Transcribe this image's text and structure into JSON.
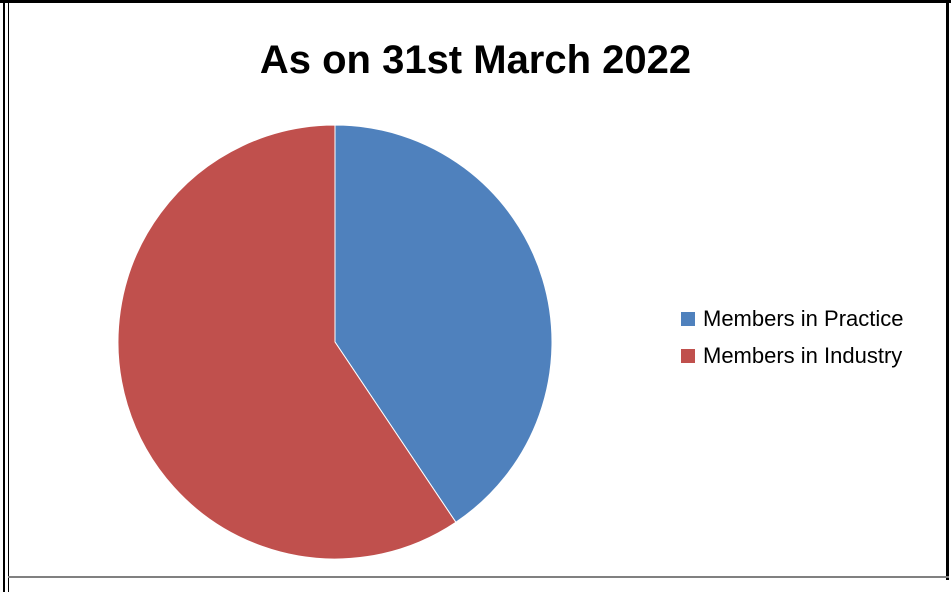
{
  "chart_data": {
    "type": "pie",
    "title": "As on 31st March 2022",
    "legend_position": "right",
    "slices": [
      {
        "label": "Members in Practice",
        "value": 40.6,
        "color": "#4F81BD"
      },
      {
        "label": "Members in Industry",
        "value": 59.4,
        "color": "#C0504D"
      }
    ]
  }
}
